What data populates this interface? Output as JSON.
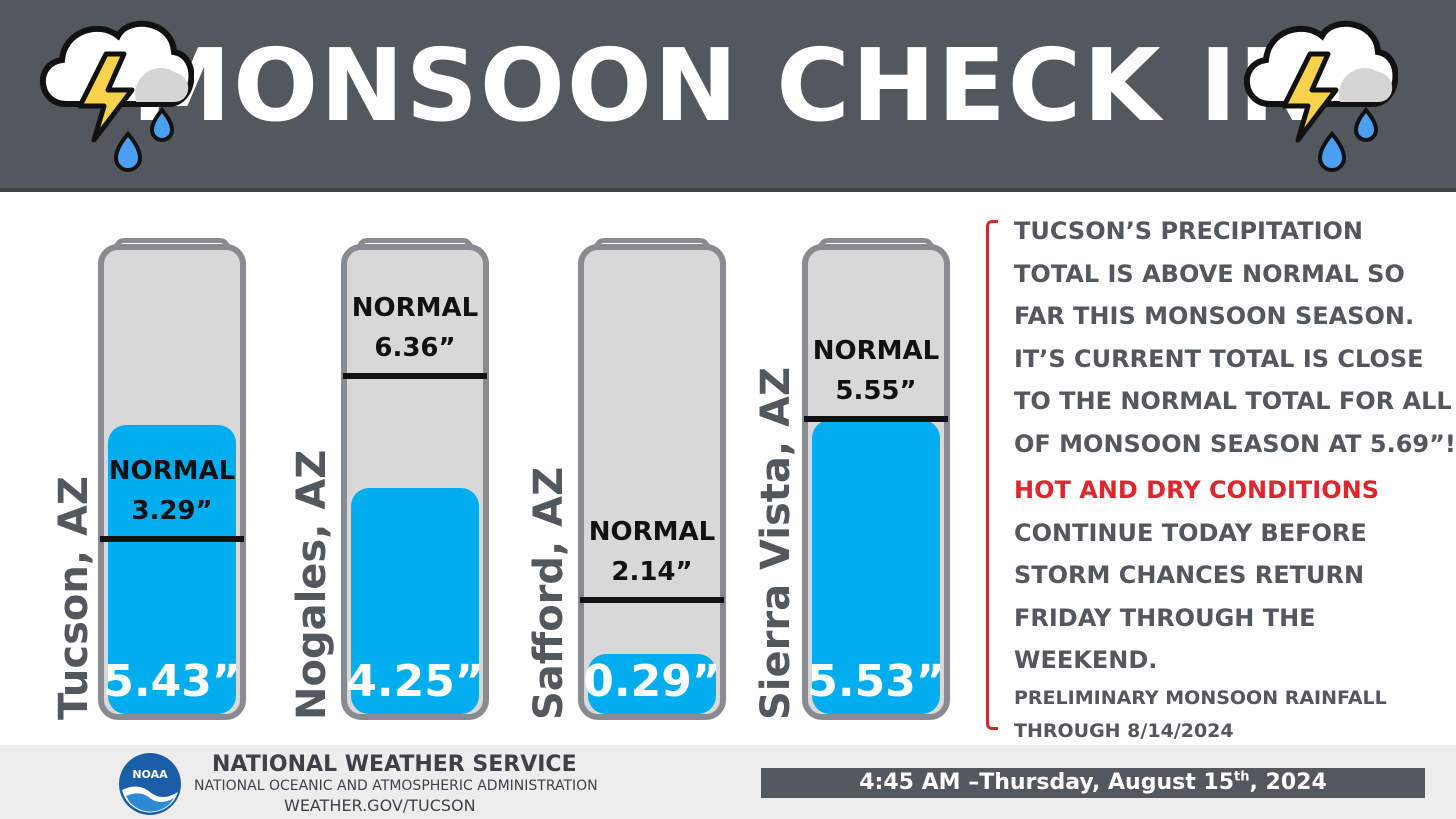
{
  "header": {
    "title": "MONSOON CHECK IN",
    "icon": "thunderstorm-cloud-icon"
  },
  "chart_data": {
    "type": "bar",
    "title": "MONSOON CHECK IN",
    "categories": [
      "Tucson, AZ",
      "Nogales, AZ",
      "Safford, AZ",
      "Sierra Vista, AZ"
    ],
    "series": [
      {
        "values": [
          5.43,
          4.25,
          0.29,
          5.53
        ]
      },
      {
        "values": [
          3.29,
          6.36,
          2.14,
          5.55
        ]
      }
    ],
    "ylim": [
      0,
      8.72
    ],
    "units": "inches",
    "value_labels": [
      "5.43”",
      "4.25”",
      "0.29”",
      "5.53”"
    ],
    "normal_label": "NORMAL",
    "normal_value_labels": [
      "3.29”",
      "6.36”",
      "2.14”",
      "5.55”"
    ],
    "colors": {
      "fill": "#00adef",
      "tube": "#d8d8d9",
      "outline": "#888b8f",
      "normal_line": "#111111"
    }
  },
  "side_text": {
    "paragraph1": [
      "TUCSON’S PRECIPITATION",
      "TOTAL IS ABOVE NORMAL SO",
      "FAR THIS MONSOON SEASON.",
      "IT’S CURRENT TOTAL IS CLOSE",
      "TO THE NORMAL TOTAL FOR ALL",
      "OF MONSOON SEASON AT 5.69”!"
    ],
    "hot_line": "HOT AND DRY CONDITIONS",
    "paragraph2": [
      "CONTINUE TODAY BEFORE",
      "STORM CHANCES RETURN",
      "FRIDAY THROUGH THE",
      "WEEKEND."
    ],
    "note": [
      "PRELIMINARY MONSOON RAINFALL",
      "THROUGH 8/14/2024"
    ],
    "hot_color": "#e0262d"
  },
  "footer": {
    "org": "NATIONAL WEATHER SERVICE",
    "agency": "NATIONAL OCEANIC AND ATMOSPHERIC ADMINISTRATION",
    "url": "WEATHER.GOV/TUCSON",
    "logo_text": "NOAA",
    "date_prefix": "4:45 AM –Thursday, August 15",
    "date_sup": "th",
    "date_suffix": ",  2024"
  }
}
